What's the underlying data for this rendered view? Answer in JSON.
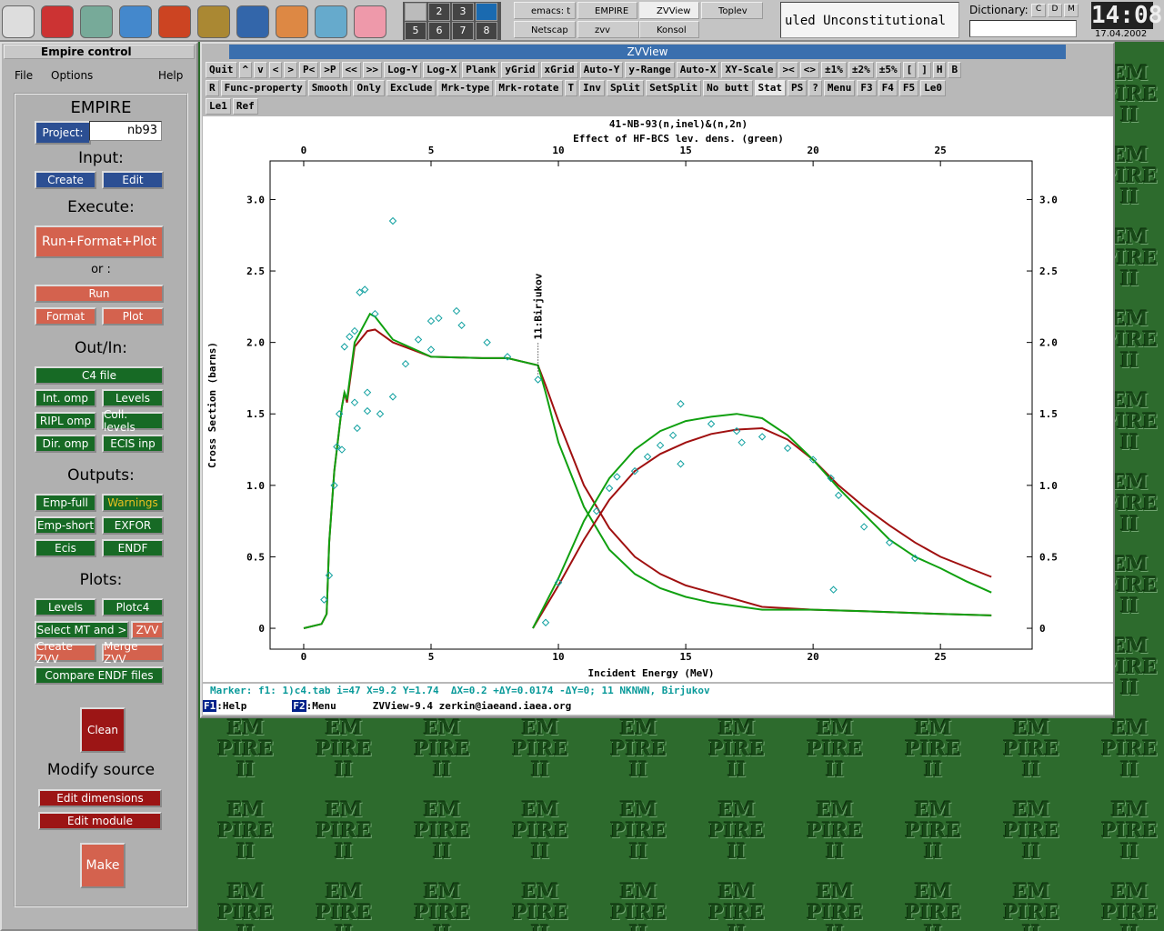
{
  "taskbar": {
    "pager": [
      "2",
      "3",
      "5",
      "6",
      "7",
      "8"
    ],
    "tasks": [
      "emacs: t",
      "EMPIRE",
      "ZVView",
      "Toplev",
      "Netscap",
      "zvv",
      "Konsol"
    ],
    "ticker": "uled Unconstitutional",
    "dictionary_label": "Dictionary:",
    "dictionary_buttons": [
      "C",
      "D",
      "M"
    ],
    "clock": "14:08",
    "date": "17.04.2002"
  },
  "wallpaper": [
    "EM",
    "PIRE",
    "II"
  ],
  "empire": {
    "title": "Empire control",
    "menu": [
      "File",
      "Options",
      "Help"
    ],
    "project_label": "Project:",
    "project": "nb93",
    "labels": [
      "EMPIRE",
      "Input:",
      "Execute:",
      "or :",
      "Out/In:",
      "Outputs:",
      "Plots:",
      "Modify source"
    ],
    "buttons": [
      "Create",
      "Edit",
      "Run+Format+Plot",
      "Run",
      "Format",
      "Plot",
      "C4 file",
      "Int. omp",
      "Levels",
      "RIPL omp",
      "Coll. levels",
      "Dir. omp",
      "ECIS inp",
      "Emp-full",
      "Warnings",
      "Emp-short",
      "EXFOR",
      "Ecis",
      "ENDF",
      "Levels",
      "Plotc4",
      "Select MT and >",
      "ZVV",
      "Create ZVV",
      "Merge ZVV",
      "Compare ENDF files",
      "Clean",
      "Edit dimensions",
      "Edit  module",
      "Make"
    ]
  },
  "zvview": {
    "title": "ZVView",
    "toolbar": [
      [
        "Quit",
        "^",
        "v",
        "<",
        ">",
        "P<",
        ">P",
        "<<",
        ">>",
        "Log-Y",
        "Log-X",
        "Plank",
        "yGrid",
        "xGrid",
        "Auto-Y",
        "y-Range",
        "Auto-X",
        "XY-Scale",
        "><",
        "<>",
        "±1%",
        "±2%",
        "±5%",
        "[",
        "]",
        "H",
        "B"
      ],
      [
        "R",
        "Func-property",
        "Smooth",
        "Only",
        "Exclude",
        "Mrk-type",
        "Mrk-rotate",
        "T",
        "Inv",
        "Split",
        "SetSplit",
        "No butt",
        "Stat",
        "PS",
        "?",
        "Menu",
        "F3",
        "F4",
        "F5",
        "Le0"
      ],
      [
        "Le1",
        "Ref"
      ]
    ],
    "status": "Marker: f1: 1)c4.tab i=47 X=9.2 Y=1.74  ΔX=0.2 +ΔY=0.0174 -ΔY=0; 11 NKNWN, Birjukov",
    "footer": [
      "F1",
      ":Help",
      "F2",
      ":Menu",
      "ZVView-9.4 zerkin@iaeand.iaea.org"
    ]
  },
  "chart_data": {
    "type": "line",
    "title": "41-NB-93(n,inel)&(n,2n)",
    "subtitle": "Effect of HF-BCS lev. dens. (green)",
    "x_label": "Incident Energy (MeV)",
    "y_label": "Cross Section (barns)",
    "annotation": "11:Birjukov",
    "xlim": [
      -1.32,
      28.6
    ],
    "ylim": [
      -0.146,
      3.27
    ],
    "xticks": [
      0,
      5,
      10,
      15,
      20,
      25
    ],
    "yticks": [
      0,
      0.5,
      {
        "value": 1,
        "label": "1.0"
      },
      1.5,
      {
        "value": 2,
        "label": "2.0"
      },
      2.5,
      {
        "value": 3,
        "label": "3.0"
      }
    ],
    "series": [
      {
        "color": "#a01010",
        "x": [
          0,
          0.7,
          0.9,
          1.0,
          1.2,
          1.5,
          1.6,
          1.7,
          2.0,
          2.5,
          2.8,
          3.5,
          5,
          7,
          8,
          9.2,
          9.5,
          10,
          11,
          12,
          13,
          14,
          15,
          16,
          17,
          18,
          20,
          22,
          25,
          27
        ],
        "values": [
          0,
          0.03,
          0.1,
          0.6,
          1.1,
          1.55,
          1.65,
          1.58,
          1.97,
          2.08,
          2.09,
          2.0,
          1.9,
          1.89,
          1.89,
          1.84,
          1.7,
          1.45,
          1.0,
          0.7,
          0.5,
          0.38,
          0.3,
          0.25,
          0.2,
          0.15,
          0.13,
          0.12,
          0.1,
          0.09
        ]
      },
      {
        "color": "#10a010",
        "x": [
          0,
          0.7,
          0.9,
          1.0,
          1.2,
          1.5,
          1.6,
          1.7,
          2.0,
          2.6,
          2.8,
          3.5,
          5,
          7,
          8,
          9.2,
          9.5,
          10,
          11,
          12,
          13,
          14,
          15,
          16,
          18,
          20,
          22,
          25,
          27
        ],
        "values": [
          0,
          0.03,
          0.1,
          0.6,
          1.1,
          1.55,
          1.65,
          1.6,
          2.0,
          2.2,
          2.18,
          2.02,
          1.9,
          1.89,
          1.89,
          1.84,
          1.65,
          1.3,
          0.85,
          0.55,
          0.38,
          0.28,
          0.22,
          0.18,
          0.13,
          0.13,
          0.12,
          0.1,
          0.09
        ]
      },
      {
        "color": "#a01010",
        "x": [
          9,
          10,
          11,
          12,
          13,
          14,
          15,
          16,
          17,
          18,
          19,
          20,
          21,
          22,
          23,
          24,
          25,
          26,
          27
        ],
        "values": [
          0,
          0.3,
          0.62,
          0.9,
          1.1,
          1.22,
          1.3,
          1.36,
          1.39,
          1.4,
          1.32,
          1.18,
          1.0,
          0.85,
          0.72,
          0.6,
          0.5,
          0.43,
          0.36
        ]
      },
      {
        "color": "#10a010",
        "x": [
          9,
          10,
          11,
          12,
          13,
          14,
          15,
          16,
          17,
          18,
          19,
          20,
          21,
          22,
          23,
          24,
          25,
          26,
          27
        ],
        "values": [
          0,
          0.35,
          0.75,
          1.05,
          1.25,
          1.38,
          1.45,
          1.48,
          1.5,
          1.47,
          1.35,
          1.18,
          0.98,
          0.8,
          0.62,
          0.5,
          0.42,
          0.33,
          0.25
        ]
      }
    ],
    "points": {
      "color": "#10a0a0",
      "x": [
        0.8,
        1.0,
        1.2,
        1.3,
        1.5,
        1.4,
        1.6,
        1.8,
        2.0,
        2.0,
        2.1,
        2.2,
        2.4,
        2.5,
        2.5,
        2.8,
        3.0,
        3.5,
        3.5,
        4.0,
        4.5,
        5.0,
        5.0,
        5.3,
        6.0,
        6.2,
        7.2,
        8.0,
        9.2,
        9.5,
        10.0,
        11.5,
        12.0,
        12.3,
        13.0,
        13.5,
        14.0,
        14.5,
        14.8,
        14.8,
        16.0,
        17.0,
        17.2,
        18.0,
        19.0,
        20.0,
        20.7,
        21.0,
        22.0,
        23.0,
        24.0,
        20.8
      ],
      "values": [
        0.2,
        0.37,
        1.0,
        1.27,
        1.25,
        1.5,
        1.97,
        2.04,
        2.08,
        1.58,
        1.4,
        2.35,
        2.37,
        1.65,
        1.52,
        2.2,
        1.5,
        1.62,
        2.85,
        1.85,
        2.02,
        2.15,
        1.95,
        2.17,
        2.22,
        2.12,
        2.0,
        1.9,
        1.74,
        0.04,
        0.32,
        0.82,
        0.98,
        1.06,
        1.1,
        1.2,
        1.28,
        1.35,
        1.57,
        1.15,
        1.43,
        1.38,
        1.3,
        1.34,
        1.26,
        1.18,
        1.05,
        0.93,
        0.71,
        0.6,
        0.49,
        0.27
      ]
    }
  }
}
